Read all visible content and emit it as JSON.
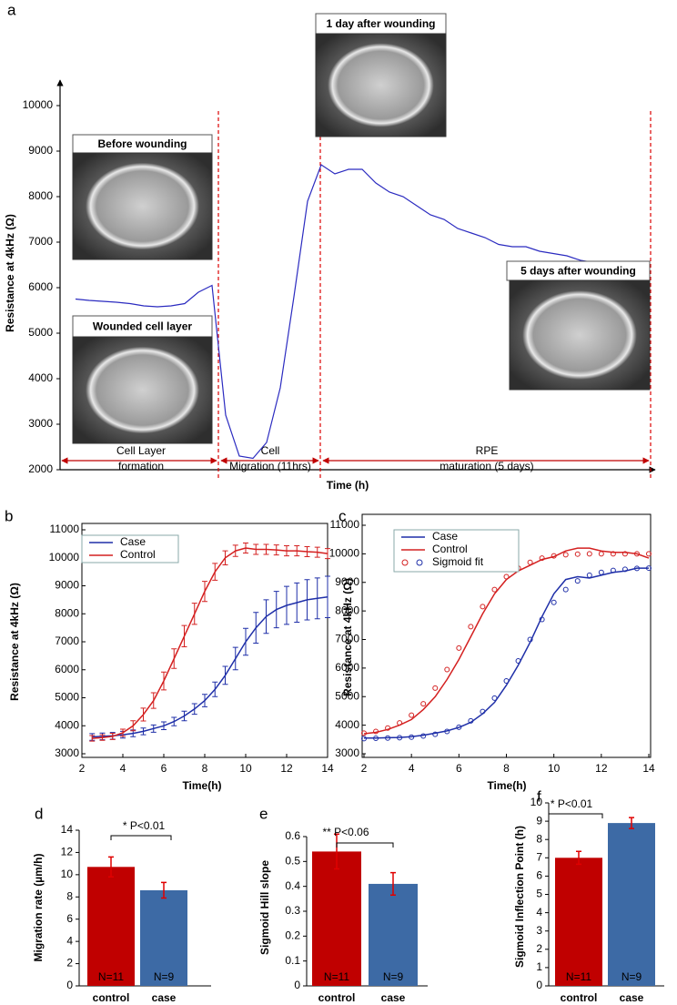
{
  "chart_data": [
    {
      "type": "line",
      "panel": "a",
      "ylabel": "Resistance at 4kHz (Ω)",
      "xlabel": "Time (h)",
      "ylim": [
        2000,
        10000
      ],
      "yticks": [
        2000,
        3000,
        4000,
        5000,
        6000,
        7000,
        8000,
        9000,
        10000
      ],
      "images": [
        "Before wounding",
        "Wounded  cell layer",
        "1 day after wounding",
        "5 days after wounding"
      ],
      "phases": [
        [
          "Cell Layer",
          "formation"
        ],
        [
          "Cell",
          "Migration (11hrs)"
        ],
        [
          "RPE",
          "maturation (5 days)"
        ]
      ],
      "series": [
        {
          "color": "#2b2bc0",
          "values": [
            5750,
            5720,
            5700,
            5680,
            5650,
            5600,
            5580,
            5600,
            5650,
            5900,
            6050,
            3200,
            2300,
            2250,
            2600,
            3800,
            5800,
            7900,
            8700,
            8500,
            8600,
            8600,
            8300,
            8100,
            8000,
            7800,
            7600,
            7500,
            7300,
            7200,
            7100,
            6950,
            6900,
            6900,
            6800,
            6750,
            6700,
            6600,
            6550,
            6500,
            6520,
            6500
          ]
        }
      ]
    },
    {
      "type": "line",
      "panel": "b",
      "ylabel": "Resistance at 4kHz (Ω)",
      "xlabel": "Time(h)",
      "xlim": [
        2,
        14
      ],
      "xticks": [
        2,
        4,
        6,
        8,
        10,
        12,
        14
      ],
      "ylim": [
        3000,
        11000
      ],
      "yticks": [
        3000,
        4000,
        5000,
        6000,
        7000,
        8000,
        9000,
        10000,
        11000
      ],
      "x": [
        2.5,
        3,
        3.5,
        4,
        4.5,
        5,
        5.5,
        6,
        6.5,
        7,
        7.5,
        8,
        8.5,
        9,
        9.5,
        10,
        10.5,
        11,
        11.5,
        12,
        12.5,
        13,
        13.5,
        14
      ],
      "series": [
        {
          "name": "Case",
          "color": "#1f2fa8",
          "values": [
            3600,
            3620,
            3640,
            3680,
            3730,
            3800,
            3900,
            4000,
            4150,
            4350,
            4600,
            4900,
            5300,
            5800,
            6400,
            7000,
            7500,
            7900,
            8150,
            8300,
            8400,
            8500,
            8550,
            8600
          ],
          "errors": [
            120,
            120,
            120,
            120,
            120,
            120,
            130,
            140,
            150,
            170,
            190,
            220,
            260,
            320,
            400,
            480,
            550,
            600,
            650,
            680,
            700,
            720,
            730,
            740
          ]
        },
        {
          "name": "Control",
          "color": "#d42020",
          "values": [
            3550,
            3580,
            3620,
            3750,
            4000,
            4400,
            4900,
            5600,
            6400,
            7200,
            8000,
            8800,
            9500,
            10000,
            10250,
            10350,
            10300,
            10300,
            10280,
            10250,
            10250,
            10220,
            10200,
            10150
          ],
          "errors": [
            100,
            100,
            110,
            130,
            180,
            230,
            280,
            320,
            350,
            380,
            380,
            360,
            300,
            250,
            200,
            180,
            180,
            180,
            180,
            180,
            180,
            180,
            180,
            180
          ]
        }
      ]
    },
    {
      "type": "line",
      "panel": "c",
      "ylabel": "Resistance at 4kHz (Ω)",
      "xlabel": "Time(h)",
      "fit_label": "Sigmoid fit",
      "xlim": [
        2,
        14
      ],
      "xticks": [
        2,
        4,
        6,
        8,
        10,
        12,
        14
      ],
      "ylim": [
        3000,
        11000
      ],
      "yticks": [
        3000,
        4000,
        5000,
        6000,
        7000,
        8000,
        9000,
        10000,
        11000
      ],
      "x": [
        2,
        2.5,
        3,
        3.5,
        4,
        4.5,
        5,
        5.5,
        6,
        6.5,
        7,
        7.5,
        8,
        8.5,
        9,
        9.5,
        10,
        10.5,
        11,
        11.5,
        12,
        12.5,
        13,
        13.5,
        14
      ],
      "series": [
        {
          "name": "Case",
          "color": "#1f2fa8",
          "values": [
            3550,
            3550,
            3560,
            3570,
            3600,
            3650,
            3720,
            3800,
            3920,
            4100,
            4400,
            4800,
            5400,
            6100,
            6900,
            7800,
            8600,
            9100,
            9200,
            9150,
            9250,
            9350,
            9400,
            9500,
            9500
          ],
          "fit": [
            3530,
            3540,
            3550,
            3560,
            3580,
            3620,
            3680,
            3780,
            3930,
            4150,
            4480,
            4950,
            5550,
            6250,
            7000,
            7700,
            8300,
            8750,
            9050,
            9250,
            9350,
            9420,
            9460,
            9490,
            9500
          ]
        },
        {
          "name": "Control",
          "color": "#d42020",
          "values": [
            3700,
            3750,
            3850,
            4000,
            4200,
            4550,
            5000,
            5600,
            6300,
            7100,
            7900,
            8600,
            9100,
            9400,
            9600,
            9800,
            9900,
            10100,
            10200,
            10200,
            10100,
            10050,
            10050,
            10000,
            9850
          ],
          "fit": [
            3720,
            3780,
            3900,
            4080,
            4350,
            4750,
            5300,
            5950,
            6700,
            7450,
            8150,
            8750,
            9200,
            9500,
            9700,
            9850,
            9930,
            9970,
            9990,
            10000,
            10000,
            10000,
            10000,
            10000,
            10000
          ]
        }
      ]
    },
    {
      "type": "bar",
      "panel": "d",
      "ylabel": "Migration rate (µm/h)",
      "annotation": "* P<0.01",
      "categories": [
        "control",
        "case"
      ],
      "values": [
        10.7,
        8.6
      ],
      "errors": [
        0.9,
        0.7
      ],
      "colors": [
        "#c00000",
        "#3d6aa5"
      ],
      "n_labels": [
        "N=11",
        "N=9"
      ],
      "ylim": [
        0,
        14
      ],
      "yticks": [
        0,
        2,
        4,
        6,
        8,
        10,
        12,
        14
      ]
    },
    {
      "type": "bar",
      "panel": "e",
      "ylabel": "Sigmoid  Hill slope",
      "annotation": "** P<0.06",
      "categories": [
        "control",
        "case"
      ],
      "values": [
        0.54,
        0.41
      ],
      "errors": [
        0.07,
        0.045
      ],
      "colors": [
        "#c00000",
        "#3d6aa5"
      ],
      "n_labels": [
        "N=11",
        "N=9"
      ],
      "ylim": [
        0,
        0.6
      ],
      "yticks": [
        0,
        0.1,
        0.2,
        0.3,
        0.4,
        0.5,
        0.6
      ]
    },
    {
      "type": "bar",
      "panel": "f",
      "ylabel": "Sigmoid Inflection Point (h)",
      "annotation": "* P<0.01",
      "categories": [
        "control",
        "case"
      ],
      "values": [
        7.0,
        8.9
      ],
      "errors": [
        0.35,
        0.3
      ],
      "colors": [
        "#c00000",
        "#3d6aa5"
      ],
      "n_labels": [
        "N=11",
        "N=9"
      ],
      "ylim": [
        0,
        10
      ],
      "yticks": [
        0,
        1,
        2,
        3,
        4,
        5,
        6,
        7,
        8,
        9,
        10
      ]
    }
  ]
}
